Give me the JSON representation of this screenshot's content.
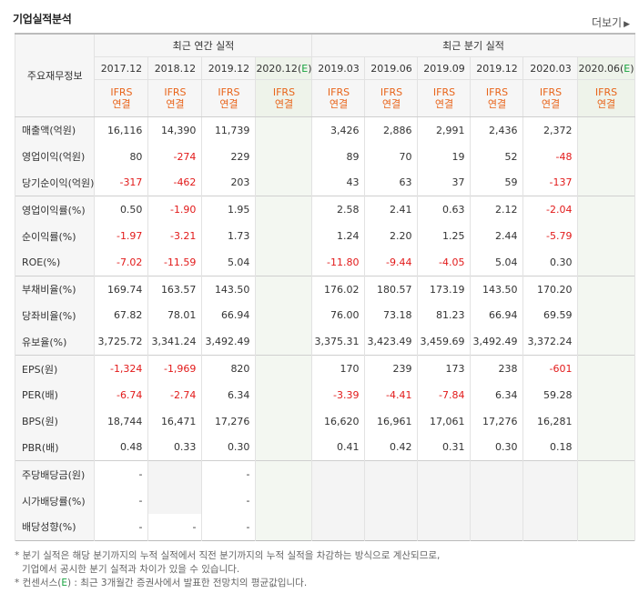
{
  "header": {
    "title": "기업실적분석",
    "more_label": "더보기",
    "more_arrow": "▶"
  },
  "table": {
    "corner_label": "주요재무정보",
    "group_annual": "최근 연간 실적",
    "group_quarter": "최근 분기 실적",
    "estimate_mark": "E",
    "annual_periods": [
      "2017.12",
      "2018.12",
      "2019.12",
      "2020.12"
    ],
    "quarter_periods": [
      "2019.03",
      "2019.06",
      "2019.09",
      "2019.12",
      "2020.03",
      "2020.06"
    ],
    "type_line1": "IFRS",
    "type_line2": "연결",
    "rows": [
      {
        "label": "매출액(억원)",
        "values": [
          "16,116",
          "14,390",
          "11,739",
          "",
          "3,426",
          "2,886",
          "2,991",
          "2,436",
          "2,372",
          ""
        ]
      },
      {
        "label": "영업이익(억원)",
        "values": [
          "80",
          "-274",
          "229",
          "",
          "89",
          "70",
          "19",
          "52",
          "-48",
          ""
        ]
      },
      {
        "label": "당기순이익(억원)",
        "values": [
          "-317",
          "-462",
          "203",
          "",
          "43",
          "63",
          "37",
          "59",
          "-137",
          ""
        ]
      },
      {
        "label": "영업이익률(%)",
        "values": [
          "0.50",
          "-1.90",
          "1.95",
          "",
          "2.58",
          "2.41",
          "0.63",
          "2.12",
          "-2.04",
          ""
        ]
      },
      {
        "label": "순이익률(%)",
        "values": [
          "-1.97",
          "-3.21",
          "1.73",
          "",
          "1.24",
          "2.20",
          "1.25",
          "2.44",
          "-5.79",
          ""
        ]
      },
      {
        "label": "ROE(%)",
        "values": [
          "-7.02",
          "-11.59",
          "5.04",
          "",
          "-11.80",
          "-9.44",
          "-4.05",
          "5.04",
          "0.30",
          ""
        ]
      },
      {
        "label": "부채비율(%)",
        "values": [
          "169.74",
          "163.57",
          "143.50",
          "",
          "176.02",
          "180.57",
          "173.19",
          "143.50",
          "170.20",
          ""
        ]
      },
      {
        "label": "당좌비율(%)",
        "values": [
          "67.82",
          "78.01",
          "66.94",
          "",
          "76.00",
          "73.18",
          "81.23",
          "66.94",
          "69.59",
          ""
        ]
      },
      {
        "label": "유보율(%)",
        "values": [
          "3,725.72",
          "3,341.24",
          "3,492.49",
          "",
          "3,375.31",
          "3,423.49",
          "3,459.69",
          "3,492.49",
          "3,372.24",
          ""
        ]
      },
      {
        "label": "EPS(원)",
        "values": [
          "-1,324",
          "-1,969",
          "820",
          "",
          "170",
          "239",
          "173",
          "238",
          "-601",
          ""
        ]
      },
      {
        "label": "PER(배)",
        "values": [
          "-6.74",
          "-2.74",
          "6.34",
          "",
          "-3.39",
          "-4.41",
          "-7.84",
          "6.34",
          "59.28",
          ""
        ]
      },
      {
        "label": "BPS(원)",
        "values": [
          "18,744",
          "16,471",
          "17,276",
          "",
          "16,620",
          "16,961",
          "17,061",
          "17,276",
          "16,281",
          ""
        ]
      },
      {
        "label": "PBR(배)",
        "values": [
          "0.48",
          "0.33",
          "0.30",
          "",
          "0.41",
          "0.42",
          "0.31",
          "0.30",
          "0.18",
          ""
        ]
      },
      {
        "label": "주당배당금(원)",
        "values": [
          "-",
          "",
          "-",
          "",
          "",
          "",
          "",
          "",
          "",
          ""
        ]
      },
      {
        "label": "시가배당률(%)",
        "values": [
          "-",
          "",
          "-",
          "",
          "",
          "",
          "",
          "",
          "",
          ""
        ]
      },
      {
        "label": "배당성향(%)",
        "values": [
          "-",
          "-",
          "-",
          "",
          "",
          "",
          "",
          "",
          "",
          ""
        ]
      }
    ]
  },
  "notes": {
    "line1": "* 분기 실적은 해당 분기까지의 누적 실적에서 직전 분기까지의 누적 실적을 차감하는 방식으로 계산되므로,",
    "line2": "기업에서 공시한 분기 실적과 차이가 있을 수 있습니다.",
    "line3_prefix": "* 컨센서스(",
    "line3_mark": "E",
    "line3_suffix": ") : 최근 3개월간 증권사에서 발표한 전망치의 평균값입니다."
  },
  "colors": {
    "negative": "#e21a1a",
    "ifrs_orange": "#e8641a",
    "estimate_green": "#16a23e",
    "estimate_bg": "#f3f7f1"
  }
}
